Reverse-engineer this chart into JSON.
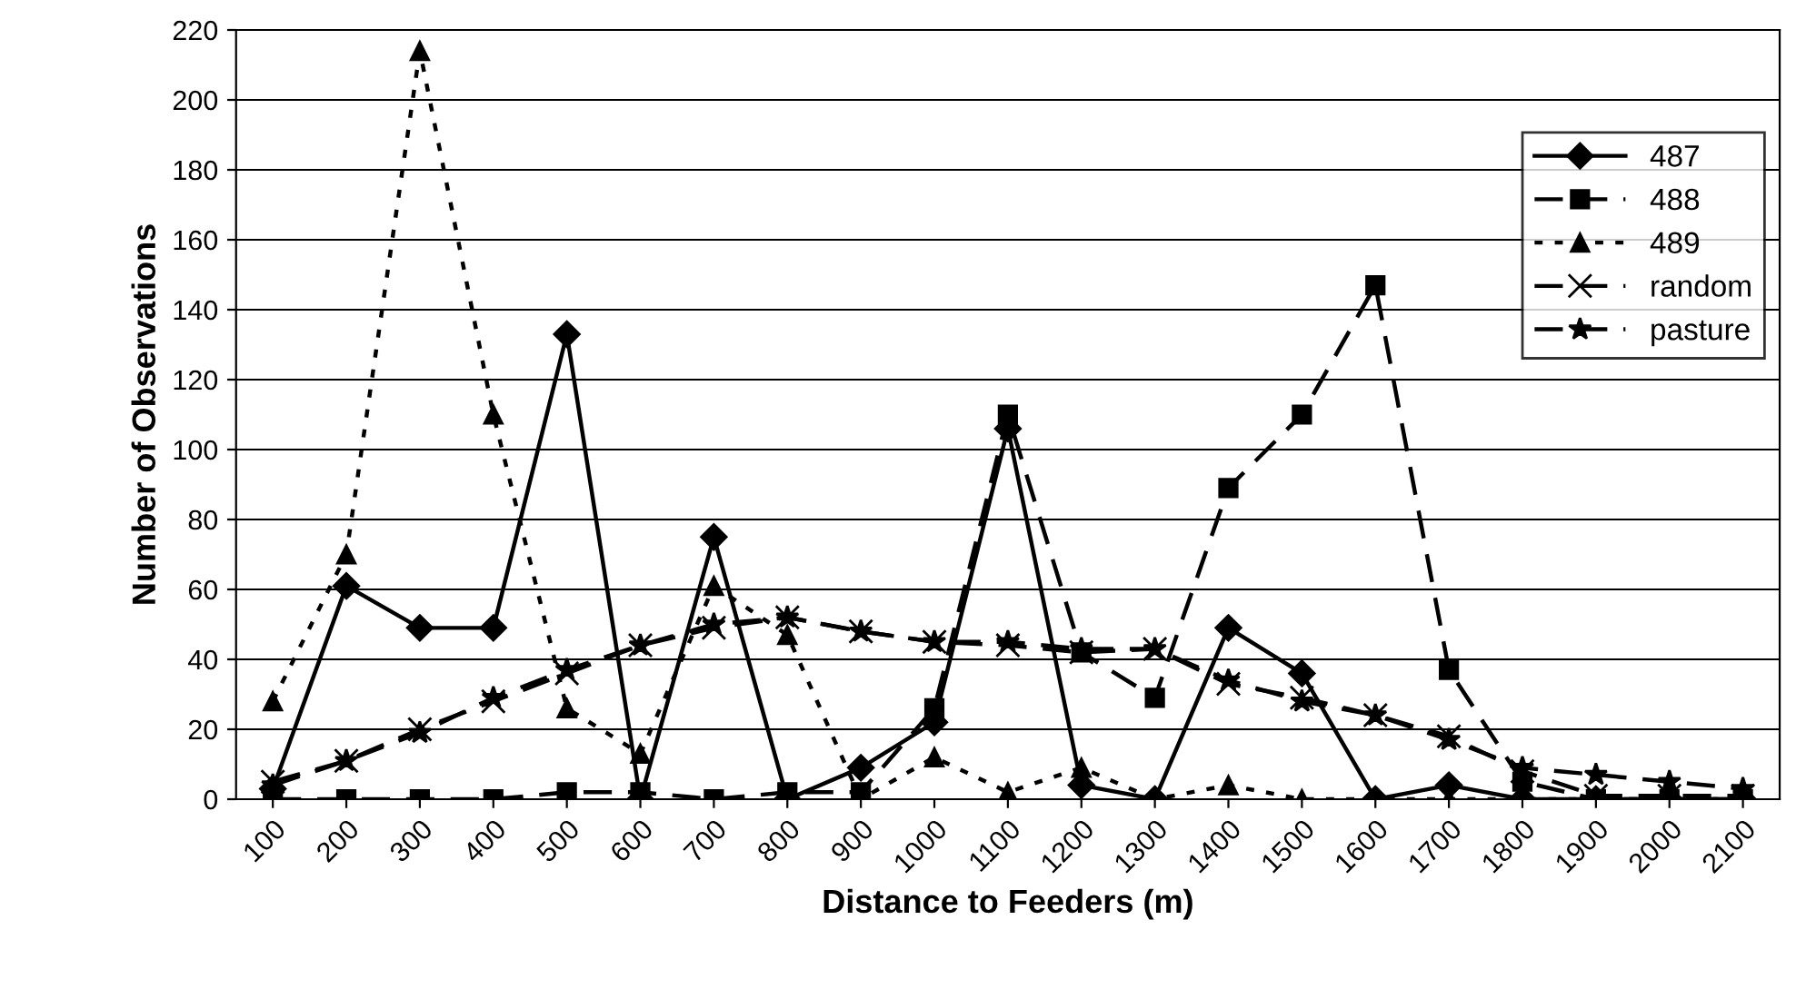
{
  "chart_data": {
    "type": "line",
    "xlabel": "Distance to Feeders (m)",
    "ylabel": "Number of Observations",
    "categories": [
      "100",
      "200",
      "300",
      "400",
      "500",
      "600",
      "700",
      "800",
      "900",
      "1000",
      "1100",
      "1200",
      "1300",
      "1400",
      "1500",
      "1600",
      "1700",
      "1800",
      "1900",
      "2000",
      "2100"
    ],
    "series": [
      {
        "name": "487",
        "color": "#000000",
        "marker": "diamond",
        "line_style": "solid",
        "values": [
          3,
          61,
          49,
          49,
          133,
          0,
          75,
          0,
          9,
          22,
          106,
          4,
          0,
          49,
          36,
          0,
          4,
          0,
          0,
          0,
          0
        ]
      },
      {
        "name": "488",
        "color": "#000000",
        "marker": "square",
        "line_style": "dashed",
        "values": [
          0,
          0,
          0,
          0,
          2,
          2,
          0,
          2,
          2,
          26,
          110,
          42,
          29,
          89,
          110,
          147,
          37,
          5,
          0,
          0,
          0
        ]
      },
      {
        "name": "489",
        "color": "#000000",
        "marker": "triangle",
        "line_style": "dotted",
        "values": [
          28,
          70,
          214,
          110,
          26,
          13,
          61,
          47,
          0,
          12,
          2,
          9,
          0,
          4,
          0,
          0,
          0,
          0,
          0,
          0,
          0
        ]
      },
      {
        "name": "random",
        "color": "#000000",
        "marker": "cross",
        "line_style": "dashed",
        "values": [
          5,
          11,
          20,
          28,
          36,
          44,
          49,
          52,
          48,
          45,
          44,
          42,
          43,
          33,
          29,
          24,
          18,
          8,
          1,
          1,
          1
        ]
      },
      {
        "name": "pasture",
        "color": "#000000",
        "marker": "star",
        "line_style": "dashed",
        "values": [
          4,
          11,
          19,
          29,
          37,
          44,
          50,
          52,
          48,
          45,
          45,
          43,
          43,
          34,
          28,
          24,
          17,
          9,
          7,
          5,
          3
        ]
      }
    ],
    "ylim": [
      0,
      220
    ],
    "yticks": [
      0,
      20,
      40,
      60,
      80,
      100,
      120,
      140,
      160,
      180,
      200,
      220
    ],
    "grid": "y",
    "legend": "right"
  }
}
